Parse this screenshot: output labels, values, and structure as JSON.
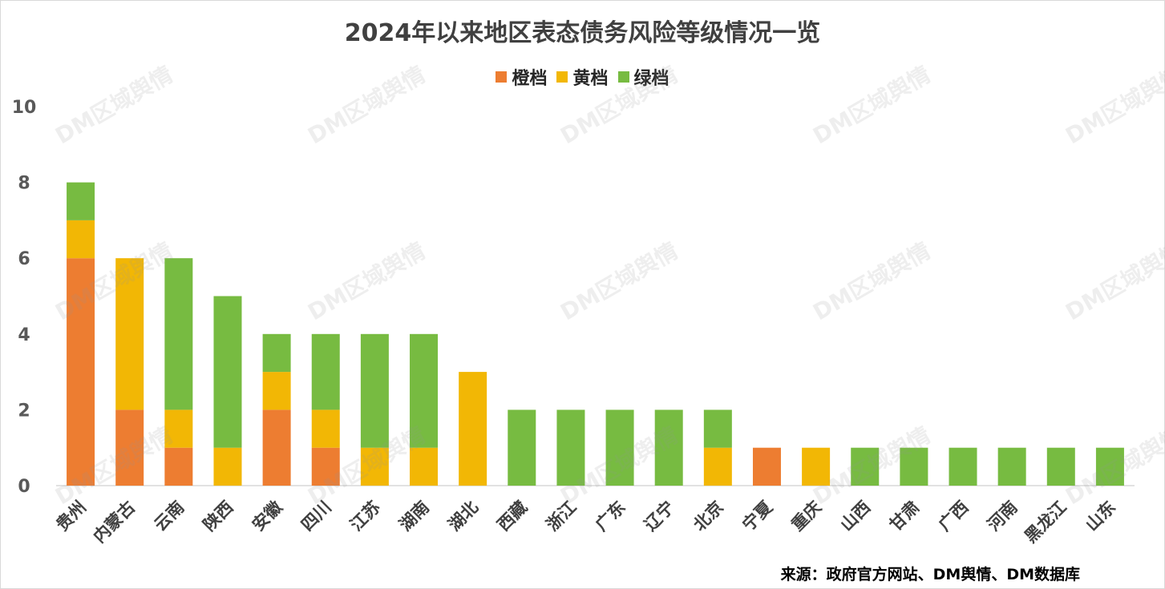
{
  "title": "2024年以来地区表态债务风险等级情况一览",
  "source": "来源：政府官方网站、DM舆情、DM数据库",
  "watermark_text": "DM区域舆情",
  "colors": {
    "orange": "#ED7D31",
    "yellow": "#F2B705",
    "green": "#77BB41",
    "axis": "#d9d9d9",
    "text": "#595959"
  },
  "chart_data": {
    "type": "bar",
    "stacked": true,
    "title": "2024年以来地区表态债务风险等级情况一览",
    "categories": [
      "贵州",
      "内蒙古",
      "云南",
      "陕西",
      "安徽",
      "四川",
      "江苏",
      "湖南",
      "湖北",
      "西藏",
      "浙江",
      "广东",
      "辽宁",
      "北京",
      "宁夏",
      "重庆",
      "山西",
      "甘肃",
      "广西",
      "河南",
      "黑龙江",
      "山东"
    ],
    "series": [
      {
        "name": "橙档",
        "color": "#ED7D31",
        "values": [
          6,
          2,
          1,
          0,
          2,
          1,
          0,
          0,
          0,
          0,
          0,
          0,
          0,
          0,
          1,
          0,
          0,
          0,
          0,
          0,
          0,
          0
        ]
      },
      {
        "name": "黄档",
        "color": "#F2B705",
        "values": [
          1,
          4,
          1,
          1,
          1,
          1,
          1,
          1,
          3,
          0,
          0,
          0,
          0,
          1,
          0,
          1,
          0,
          0,
          0,
          0,
          0,
          0
        ]
      },
      {
        "name": "绿档",
        "color": "#77BB41",
        "values": [
          1,
          0,
          4,
          4,
          1,
          2,
          3,
          3,
          0,
          2,
          2,
          2,
          2,
          1,
          0,
          0,
          1,
          1,
          1,
          1,
          1,
          1
        ]
      }
    ],
    "ylim": [
      0,
      10
    ],
    "yticks": [
      0,
      2,
      4,
      6,
      8,
      10
    ],
    "grid": false,
    "legend_position": "top"
  }
}
